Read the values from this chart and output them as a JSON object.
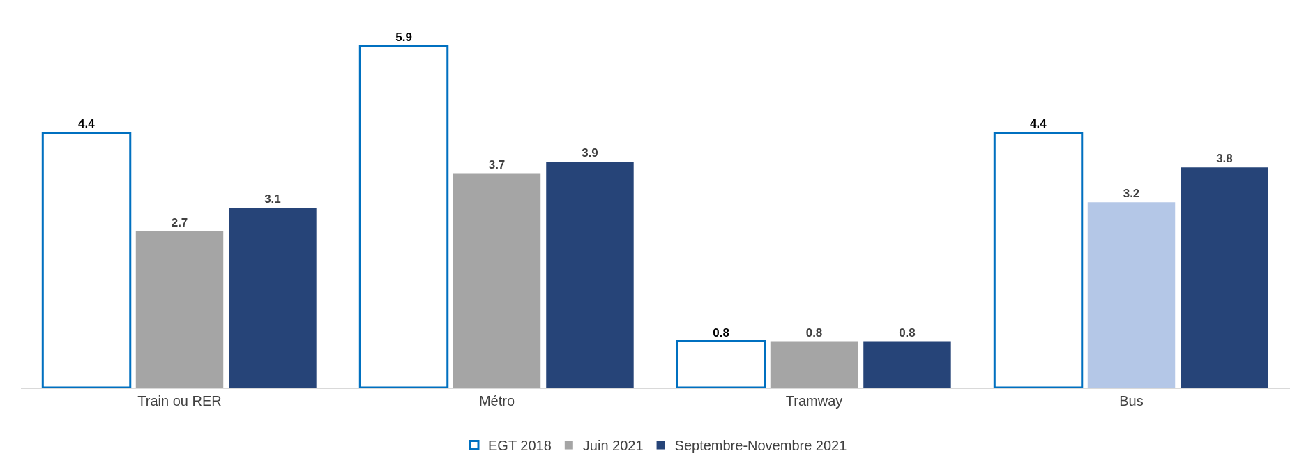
{
  "chart_data": {
    "type": "bar",
    "categories": [
      "Train ou RER",
      "Métro",
      "Tramway",
      "Bus"
    ],
    "series": [
      {
        "name": "EGT 2018",
        "color": "#0070c0",
        "values": [
          4.4,
          5.9,
          0.8,
          4.4
        ]
      },
      {
        "name": "Juin 2021",
        "colors": [
          "#a5a5a5",
          "#a5a5a5",
          "#a5a5a5",
          "#b4c7e7"
        ],
        "values": [
          2.7,
          3.7,
          0.8,
          3.2
        ]
      },
      {
        "name": "Septembre-Novembre 2021",
        "color": "#264478",
        "values": [
          3.1,
          3.9,
          0.8,
          3.8
        ]
      }
    ],
    "data_labels": true,
    "legend": "bottom"
  }
}
